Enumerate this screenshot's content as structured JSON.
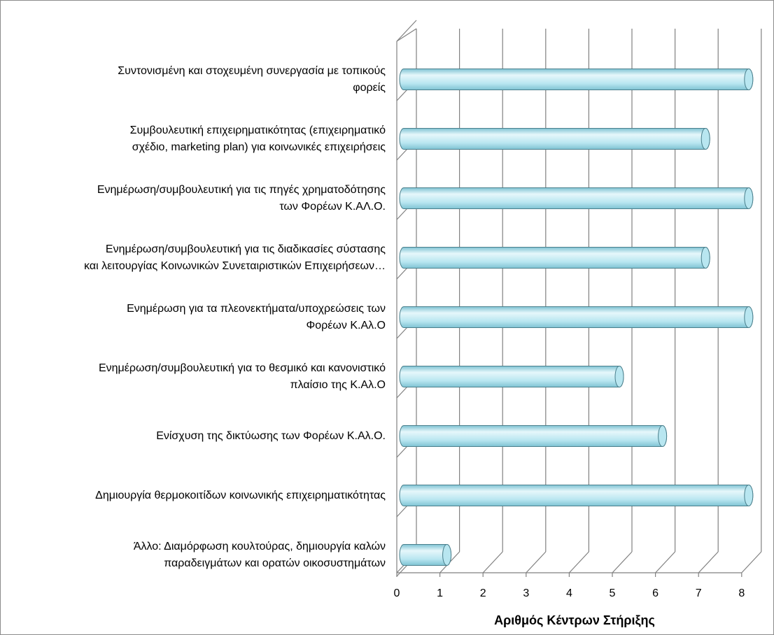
{
  "chart_data": {
    "type": "bar",
    "orientation": "horizontal",
    "style": "3d-cylinder",
    "title": "",
    "xlabel": "Αριθμός Κέντρων Στήριξης",
    "ylabel": "",
    "xlim": [
      0,
      8
    ],
    "ticks": [
      "0",
      "1",
      "2",
      "3",
      "4",
      "5",
      "6",
      "7",
      "8"
    ],
    "grid": true,
    "categories": [
      "Συντονισμένη και στοχευμένη συνεργασία με τοπικούς φορείς",
      "Συμβουλευτική επιχειρηματικότητας (επιχειρηματικό σχέδιο, marketing plan) για κοινωνικές επιχειρήσεις",
      "Ενημέρωση/συμβουλευτική για τις πηγές χρηματοδότησης των Φορέων Κ.ΑΛ.Ο.",
      "Ενημέρωση/συμβουλευτική για τις διαδικασίες σύστασης και λειτουργίας Κοινωνικών Συνεταιριστικών Επιχειρήσεων…",
      "Ενημέρωση για τα πλεονεκτήματα/υποχρεώσεις των Φορέων Κ.Αλ.Ο",
      "Ενημέρωση/συμβουλευτική για το θεσμικό και κανονιστικό πλαίσιο της Κ.Αλ.Ο",
      "Ενίσχυση της δικτύωσης των Φορέων Κ.Αλ.Ο.",
      "Δημιουργία θερμοκοιτίδων κοινωνικής επιχειρηματικότητας",
      "Άλλο: Διαμόρφωση κουλτούρας, δημιουργία καλών παραδειγμάτων και ορατών οικοσυστημάτων"
    ],
    "label_lines": [
      [
        "Συντονισμένη και στοχευμένη συνεργασία με τοπικούς",
        "φορείς"
      ],
      [
        "Συμβουλευτική επιχειρηματικότητας (επιχειρηματικό",
        "σχέδιο, marketing plan) για κοινωνικές επιχειρήσεις"
      ],
      [
        "Ενημέρωση/συμβουλευτική για τις πηγές χρηματοδότησης",
        "των Φορέων Κ.ΑΛ.Ο."
      ],
      [
        "Ενημέρωση/συμβουλευτική για τις διαδικασίες σύστασης",
        "και λειτουργίας Κοινωνικών Συνεταιριστικών Επιχειρήσεων…"
      ],
      [
        "Ενημέρωση για τα πλεονεκτήματα/υποχρεώσεις των",
        "Φορέων Κ.Αλ.Ο"
      ],
      [
        "Ενημέρωση/συμβουλευτική για το θεσμικό και κανονιστικό",
        "πλαίσιο της Κ.Αλ.Ο"
      ],
      [
        "Ενίσχυση της δικτύωσης των Φορέων Κ.Αλ.Ο."
      ],
      [
        "Δημιουργία θερμοκοιτίδων κοινωνικής επιχειρηματικότητας"
      ],
      [
        "Άλλο: Διαμόρφωση κουλτούρας, δημιουργία καλών",
        "παραδειγμάτων και ορατών οικοσυστημάτων"
      ]
    ],
    "values": [
      8,
      7,
      8,
      7,
      8,
      5,
      6,
      8,
      1
    ],
    "colors": {
      "bar_light": "#e6f7fb",
      "bar_mid": "#b8e6f0",
      "bar_dark": "#7fc3d3",
      "bar_edge": "#4a7f8c",
      "grid": "#808080"
    }
  }
}
